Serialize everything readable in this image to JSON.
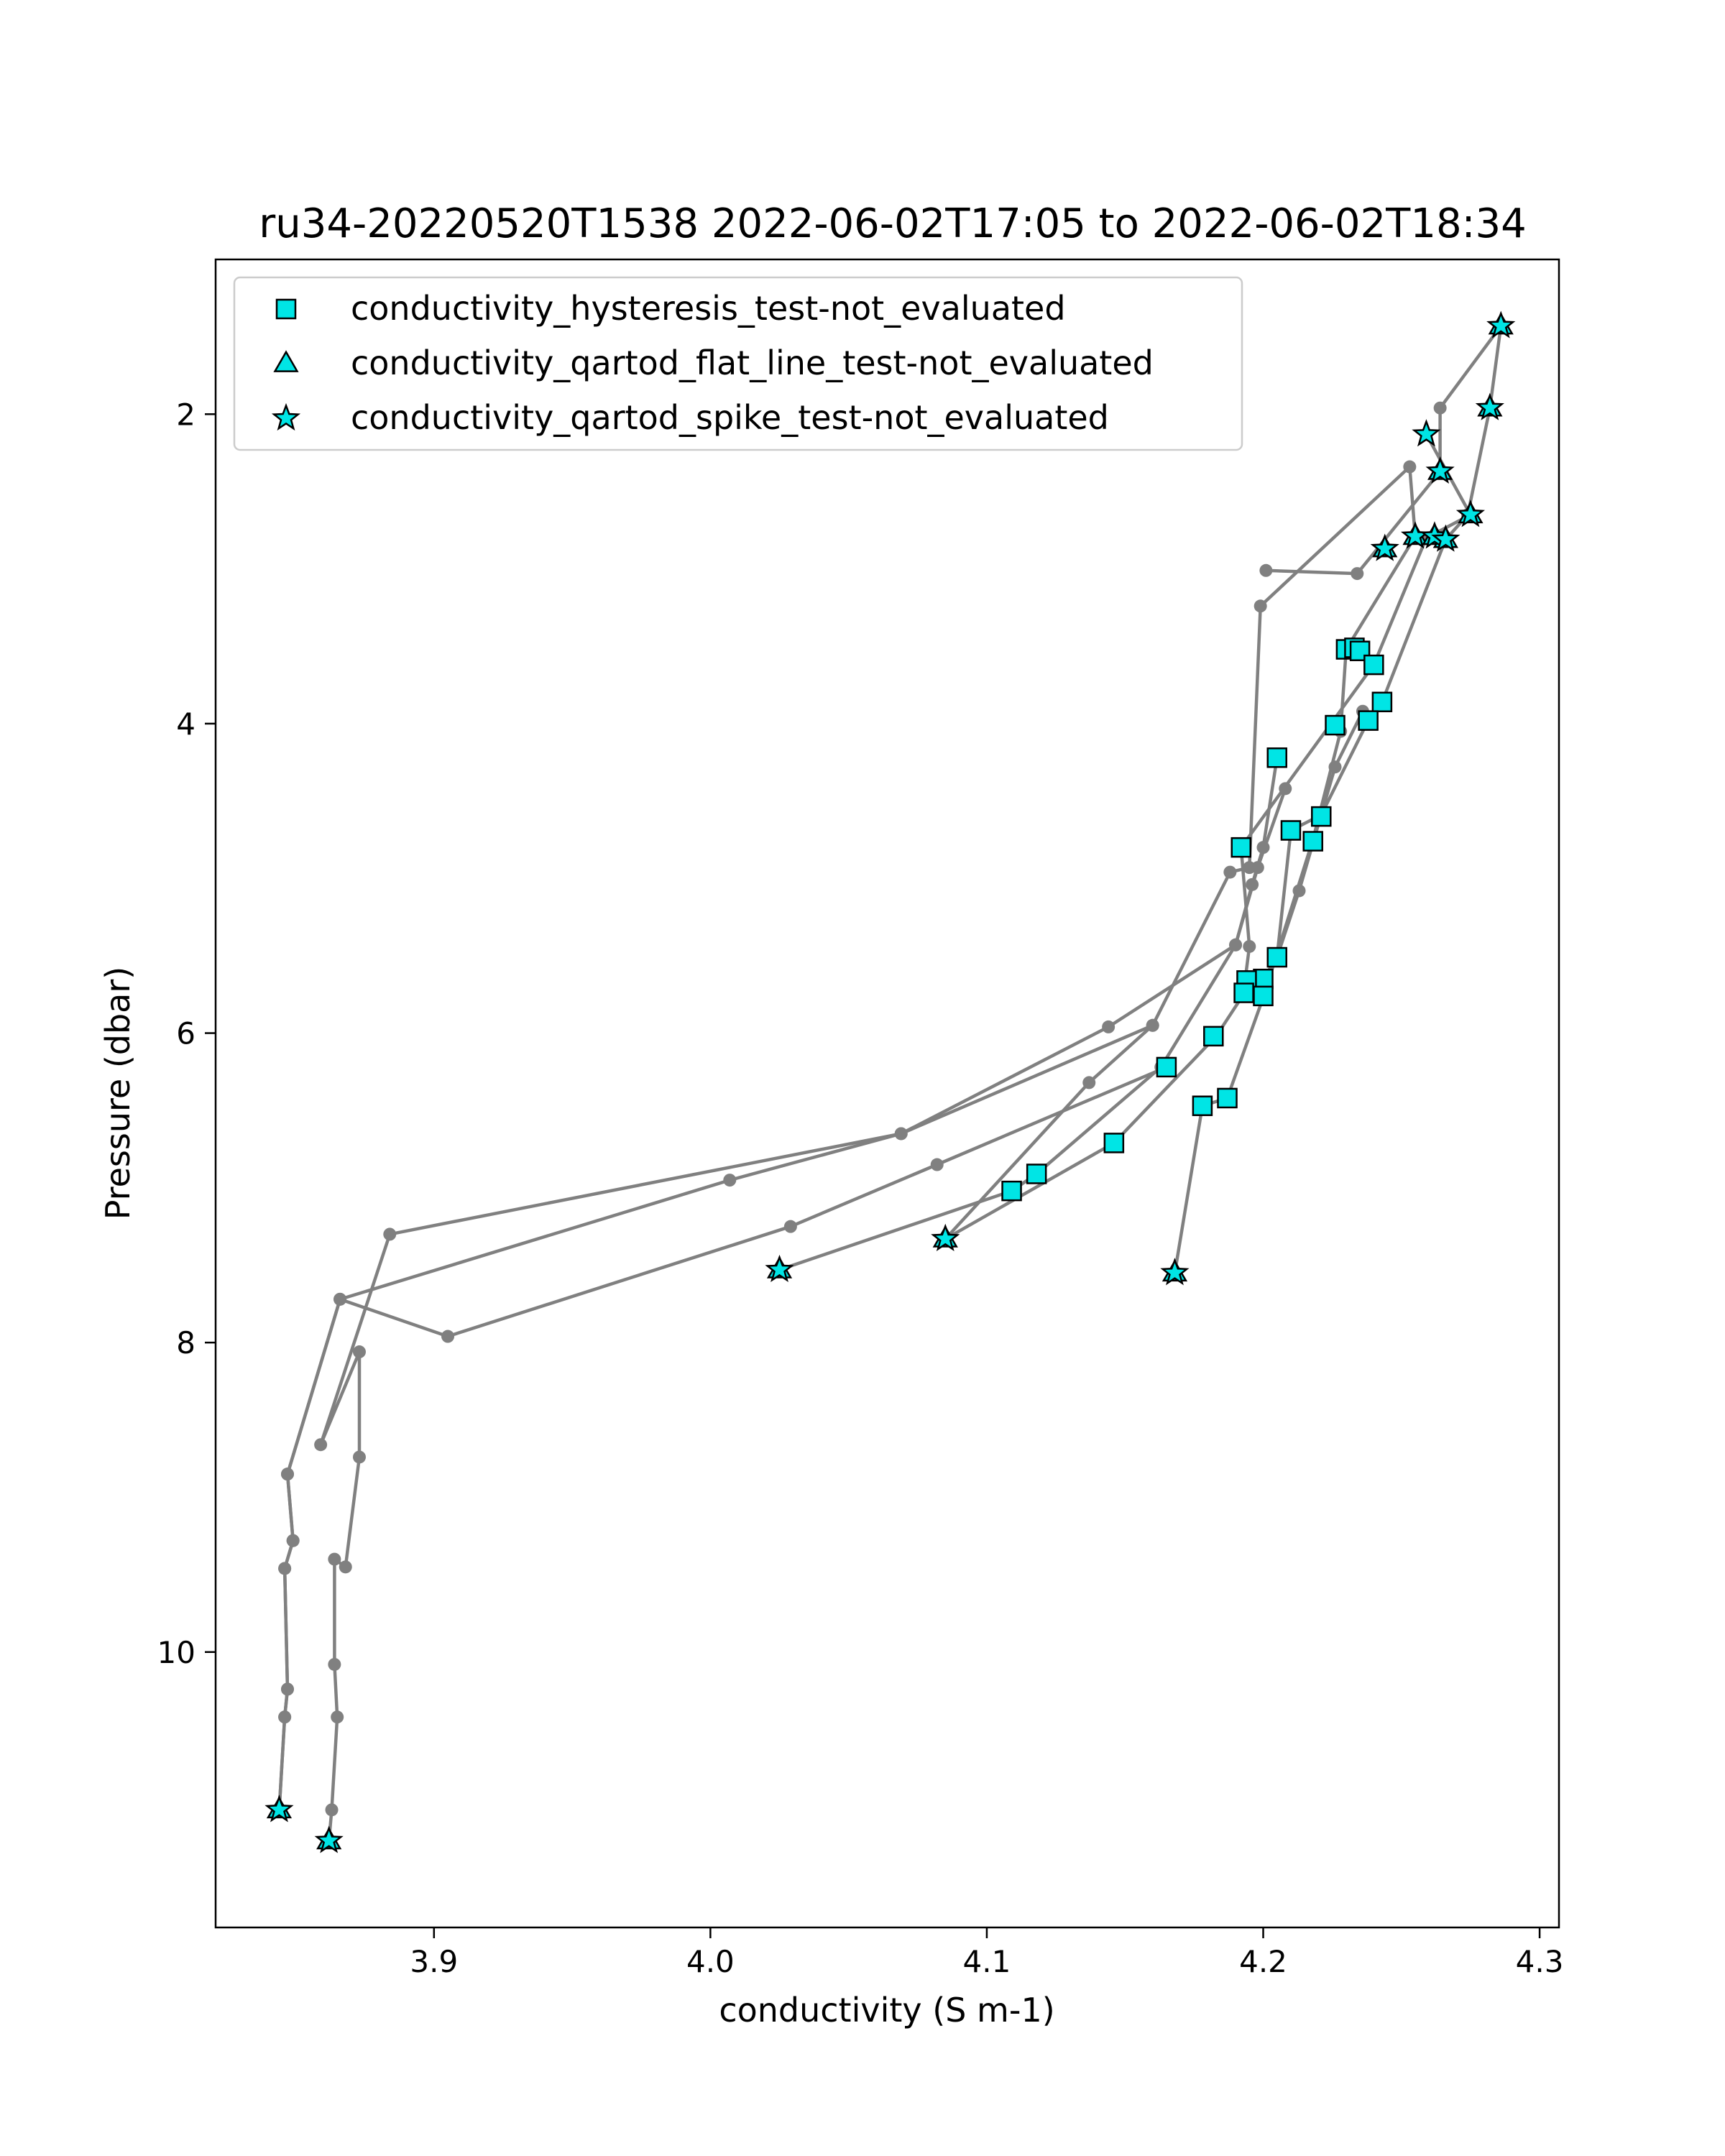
{
  "chart_data": {
    "type": "scatter",
    "title": "ru34-20220520T1538 2022-06-02T17:05 to 2022-06-02T18:34",
    "xlabel": "conductivity (S m-1)",
    "ylabel": "Pressure (dbar)",
    "xlim": [
      3.821,
      4.307
    ],
    "ylim": [
      11.78,
      1.0
    ],
    "y_inverted": true,
    "xticks": [
      3.9,
      4.0,
      4.1,
      4.2,
      4.3
    ],
    "xtick_labels": [
      "3.9",
      "4.0",
      "4.1",
      "4.2",
      "4.3"
    ],
    "yticks": [
      2,
      4,
      6,
      8,
      10
    ],
    "ytick_labels": [
      "2",
      "4",
      "6",
      "8",
      "10"
    ],
    "grid": false,
    "legend_position": "upper-left",
    "profile_line_color": "#808080",
    "marker_fill_color": "#00e5e5",
    "marker_edge_color": "#000000",
    "profiles": [
      {
        "points": [
          [
            3.844,
            11.02
          ],
          [
            3.846,
            10.42
          ],
          [
            3.847,
            10.24
          ],
          [
            3.846,
            9.46
          ],
          [
            3.849,
            9.28
          ],
          [
            3.847,
            8.85
          ],
          [
            3.866,
            7.72
          ],
          [
            3.905,
            7.96
          ],
          [
            4.029,
            7.25
          ],
          [
            4.082,
            6.85
          ],
          [
            4.165,
            6.22
          ]
        ]
      },
      {
        "points": [
          [
            3.844,
            11.02
          ],
          [
            3.846,
            10.42
          ],
          [
            3.847,
            10.24
          ],
          [
            3.846,
            9.46
          ],
          [
            3.849,
            9.28
          ],
          [
            3.847,
            8.85
          ],
          [
            3.866,
            7.72
          ],
          [
            4.007,
            6.95
          ],
          [
            4.069,
            6.65
          ],
          [
            4.16,
            5.95
          ]
        ]
      },
      {
        "points": [
          [
            3.862,
            11.22
          ],
          [
            3.863,
            11.02
          ],
          [
            3.865,
            10.42
          ],
          [
            3.864,
            10.08
          ],
          [
            3.864,
            9.4
          ],
          [
            3.868,
            9.45
          ],
          [
            3.873,
            8.74
          ],
          [
            3.873,
            8.06
          ],
          [
            3.859,
            8.66
          ],
          [
            3.884,
            7.3
          ],
          [
            4.069,
            6.65
          ],
          [
            4.144,
            5.96
          ],
          [
            4.19,
            5.43
          ],
          [
            4.198,
            4.93
          ],
          [
            4.208,
            4.42
          ]
        ]
      },
      {
        "points": [
          [
            4.025,
            7.53
          ],
          [
            4.109,
            7.02
          ],
          [
            4.118,
            6.91
          ],
          [
            4.163,
            6.22
          ],
          [
            4.19,
            5.43
          ],
          [
            4.196,
            5.04
          ],
          [
            4.2,
            4.8
          ],
          [
            4.205,
            4.22
          ]
        ]
      },
      {
        "points": [
          [
            4.085,
            7.33
          ],
          [
            4.146,
            6.71
          ],
          [
            4.183,
            6.02
          ],
          [
            4.194,
            5.72
          ],
          [
            4.2,
            5.65
          ],
          [
            4.205,
            5.51
          ],
          [
            4.213,
            5.08
          ],
          [
            4.226,
            4.28
          ],
          [
            4.236,
            3.92
          ]
        ]
      },
      {
        "points": [
          [
            4.168,
            7.55
          ],
          [
            4.178,
            6.47
          ],
          [
            4.187,
            6.42
          ],
          [
            4.2,
            5.77
          ],
          [
            4.218,
            4.75
          ],
          [
            4.228,
            4.05
          ],
          [
            4.23,
            3.52
          ],
          [
            4.255,
            2.79
          ],
          [
            4.253,
            2.34
          ],
          [
            4.199,
            3.24
          ],
          [
            4.195,
            4.93
          ],
          [
            4.188,
            4.96
          ],
          [
            4.16,
            5.95
          ],
          [
            4.137,
            6.32
          ],
          [
            4.085,
            7.33
          ]
        ]
      },
      {
        "points": [
          [
            4.205,
            5.51
          ],
          [
            4.21,
            4.69
          ],
          [
            4.221,
            4.59
          ],
          [
            4.238,
            3.98
          ],
          [
            4.243,
            3.86
          ],
          [
            4.266,
            2.81
          ],
          [
            4.274,
            2.65
          ],
          [
            4.282,
            1.96
          ],
          [
            4.286,
            1.43
          ]
        ]
      },
      {
        "points": [
          [
            4.201,
            3.01
          ],
          [
            4.234,
            3.03
          ],
          [
            4.264,
            2.37
          ],
          [
            4.264,
            1.96
          ],
          [
            4.286,
            1.43
          ]
        ]
      },
      {
        "points": [
          [
            4.193,
            5.72
          ],
          [
            4.195,
            5.44
          ],
          [
            4.192,
            4.8
          ],
          [
            4.24,
            3.62
          ],
          [
            4.259,
            2.8
          ],
          [
            4.275,
            2.65
          ],
          [
            4.259,
            2.13
          ]
        ]
      }
    ],
    "series": [
      {
        "name": "conductivity_hysteresis_test-not_evaluated",
        "marker": "square",
        "points": [
          [
            4.205,
            4.22
          ],
          [
            4.226,
            4.01
          ],
          [
            4.23,
            3.52
          ],
          [
            4.233,
            3.51
          ],
          [
            4.235,
            3.53
          ],
          [
            4.24,
            3.62
          ],
          [
            4.243,
            3.86
          ],
          [
            4.238,
            3.98
          ],
          [
            4.221,
            4.6
          ],
          [
            4.21,
            4.69
          ],
          [
            4.218,
            4.76
          ],
          [
            4.192,
            4.8
          ],
          [
            4.205,
            5.51
          ],
          [
            4.2,
            5.65
          ],
          [
            4.194,
            5.66
          ],
          [
            4.193,
            5.74
          ],
          [
            4.2,
            5.76
          ],
          [
            4.182,
            6.02
          ],
          [
            4.165,
            6.22
          ],
          [
            4.187,
            6.42
          ],
          [
            4.178,
            6.47
          ],
          [
            4.146,
            6.71
          ],
          [
            4.118,
            6.91
          ],
          [
            4.109,
            7.02
          ]
        ]
      },
      {
        "name": "conductivity_qartod_flat_line_test-not_evaluated",
        "marker": "triangle",
        "points": [
          [
            4.286,
            1.43
          ],
          [
            4.282,
            1.96
          ],
          [
            4.264,
            2.37
          ],
          [
            4.275,
            2.65
          ],
          [
            4.255,
            2.79
          ],
          [
            4.262,
            2.79
          ],
          [
            4.266,
            2.81
          ],
          [
            4.244,
            2.87
          ],
          [
            4.025,
            7.53
          ],
          [
            4.085,
            7.33
          ],
          [
            4.168,
            7.55
          ],
          [
            3.844,
            11.02
          ],
          [
            3.862,
            11.22
          ]
        ]
      },
      {
        "name": "conductivity_qartod_spike_test-not_evaluated",
        "marker": "star",
        "points": [
          [
            4.286,
            1.43
          ],
          [
            4.282,
            1.96
          ],
          [
            4.259,
            2.13
          ],
          [
            4.264,
            2.37
          ],
          [
            4.275,
            2.65
          ],
          [
            4.255,
            2.79
          ],
          [
            4.262,
            2.79
          ],
          [
            4.266,
            2.81
          ],
          [
            4.244,
            2.87
          ],
          [
            4.025,
            7.53
          ],
          [
            4.085,
            7.33
          ],
          [
            4.168,
            7.55
          ],
          [
            3.844,
            11.02
          ],
          [
            3.862,
            11.22
          ]
        ]
      }
    ]
  }
}
